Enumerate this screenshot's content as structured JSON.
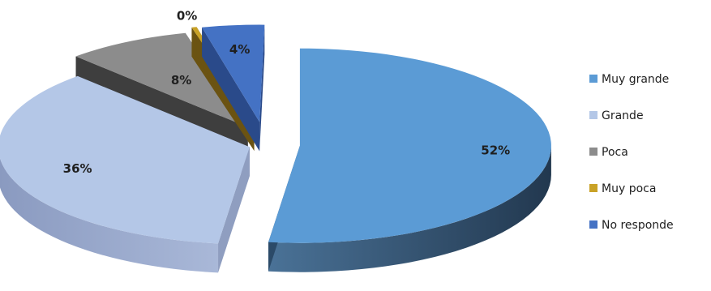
{
  "chart_data": {
    "type": "pie",
    "style": "3d-exploded",
    "categories": [
      "Muy grande",
      "Grande",
      "Poca",
      "Muy poca",
      "No responde"
    ],
    "values": [
      52,
      36,
      8,
      0,
      4
    ],
    "labels": [
      "52%",
      "36%",
      "8%",
      "0%",
      "4%"
    ],
    "colors": [
      "#5b9bd5",
      "#b4c7e7",
      "#8c8c8c",
      "#c9a227",
      "#4472c4"
    ],
    "side_colors": [
      "#2b4a68",
      "#8f9ec0",
      "#3e3e3e",
      "#6b5312",
      "#2a4a8a"
    ],
    "legend_position": "right"
  }
}
